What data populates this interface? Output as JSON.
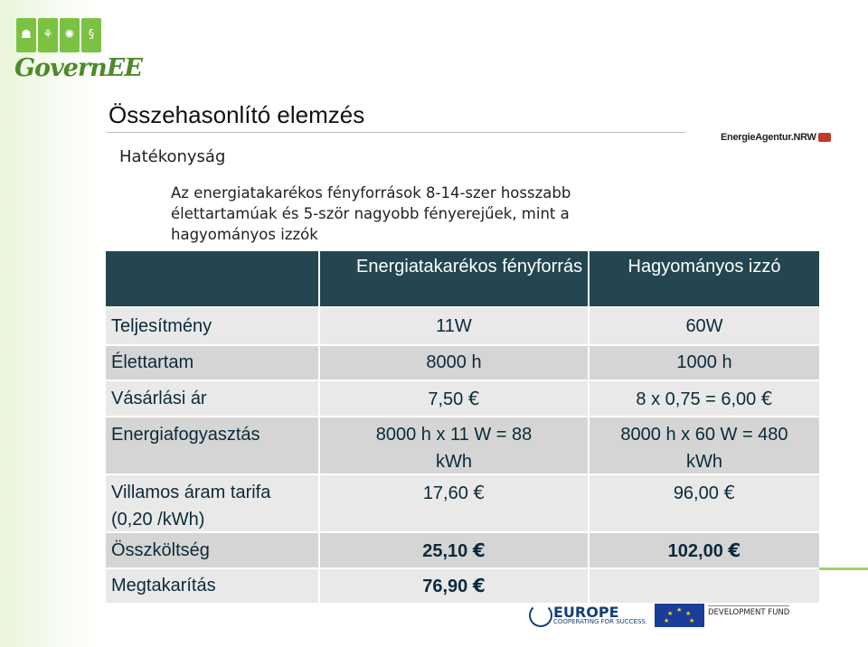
{
  "brand": {
    "logo_text": "GovernEE",
    "squares": [
      "☗",
      "⚘",
      "✺",
      "§"
    ],
    "green": "#7cc242"
  },
  "header": {
    "title": "Összehasonlító elemzés",
    "partner_logo": "EnergieAgentur.NRW"
  },
  "subtitle": "Hatékonyság",
  "paragraph": "Az energiatakarékos fényforrások 8-14-szer hosszabb élettartamúak és 5-ször nagyobb fényerejűek, mint a hagyományos izzók",
  "table": {
    "header_color": "#234650",
    "columns": [
      "",
      "Energiatakarékos fényforrás",
      "Hagyományos izzó"
    ],
    "rows": [
      {
        "label": "Teljesítmény",
        "col1": "11W",
        "col2": "60W"
      },
      {
        "label": "Élettartam",
        "col1": "8000 h",
        "col2": "1000 h"
      },
      {
        "label": "Vásárlási ár",
        "col1": "7,50",
        "col2": "8 x 0,75 = 6,00"
      },
      {
        "label": "Energiafogyasztás",
        "col1": "8000 h x 11 W = 88 kWh",
        "col2": "8000 h x 60 W = 480 kWh"
      },
      {
        "label": "Villamos áram tarifa (0,20 /kWh)",
        "col1": "17,60",
        "col2": "96,00"
      },
      {
        "label": "Összköltség",
        "col1": "25,10",
        "col2": "102,00"
      },
      {
        "label": "Megtakarítás",
        "col1": "76,90",
        "col2": ""
      }
    ],
    "currency_icon": "euro-sign"
  },
  "footer_logos": {
    "europe": "EUROPE",
    "europe_sub": "COOPERATING FOR SUCCESS.",
    "fund": "DEVELOPMENT FUND"
  }
}
